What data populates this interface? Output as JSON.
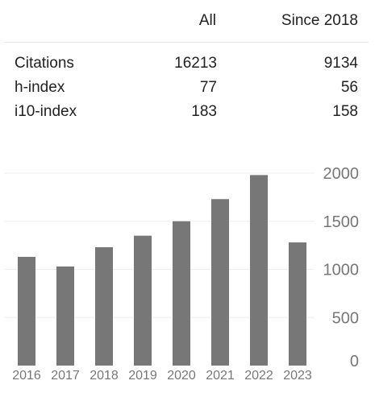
{
  "stats": {
    "columns": {
      "all": "All",
      "since": "Since 2018"
    },
    "rows": [
      {
        "label": "Citations",
        "all": "16213",
        "since": "9134"
      },
      {
        "label": "h-index",
        "all": "77",
        "since": "56"
      },
      {
        "label": "i10-index",
        "all": "183",
        "since": "158"
      }
    ]
  },
  "chart_data": {
    "type": "bar",
    "categories": [
      "2016",
      "2017",
      "2018",
      "2019",
      "2020",
      "2021",
      "2022",
      "2023"
    ],
    "values": [
      1130,
      1030,
      1230,
      1350,
      1500,
      1730,
      1980,
      1280
    ],
    "ylim": [
      0,
      2000
    ],
    "yticks": [
      0,
      500,
      1000,
      1500,
      2000
    ],
    "ytick_labels": [
      "0",
      "500",
      "1000",
      "1500",
      "2000"
    ],
    "y_axis_side": "right",
    "grid": true,
    "bar_color": "#777777",
    "grid_color": "#eeeeee",
    "xlabel": "",
    "ylabel": "",
    "title": ""
  }
}
